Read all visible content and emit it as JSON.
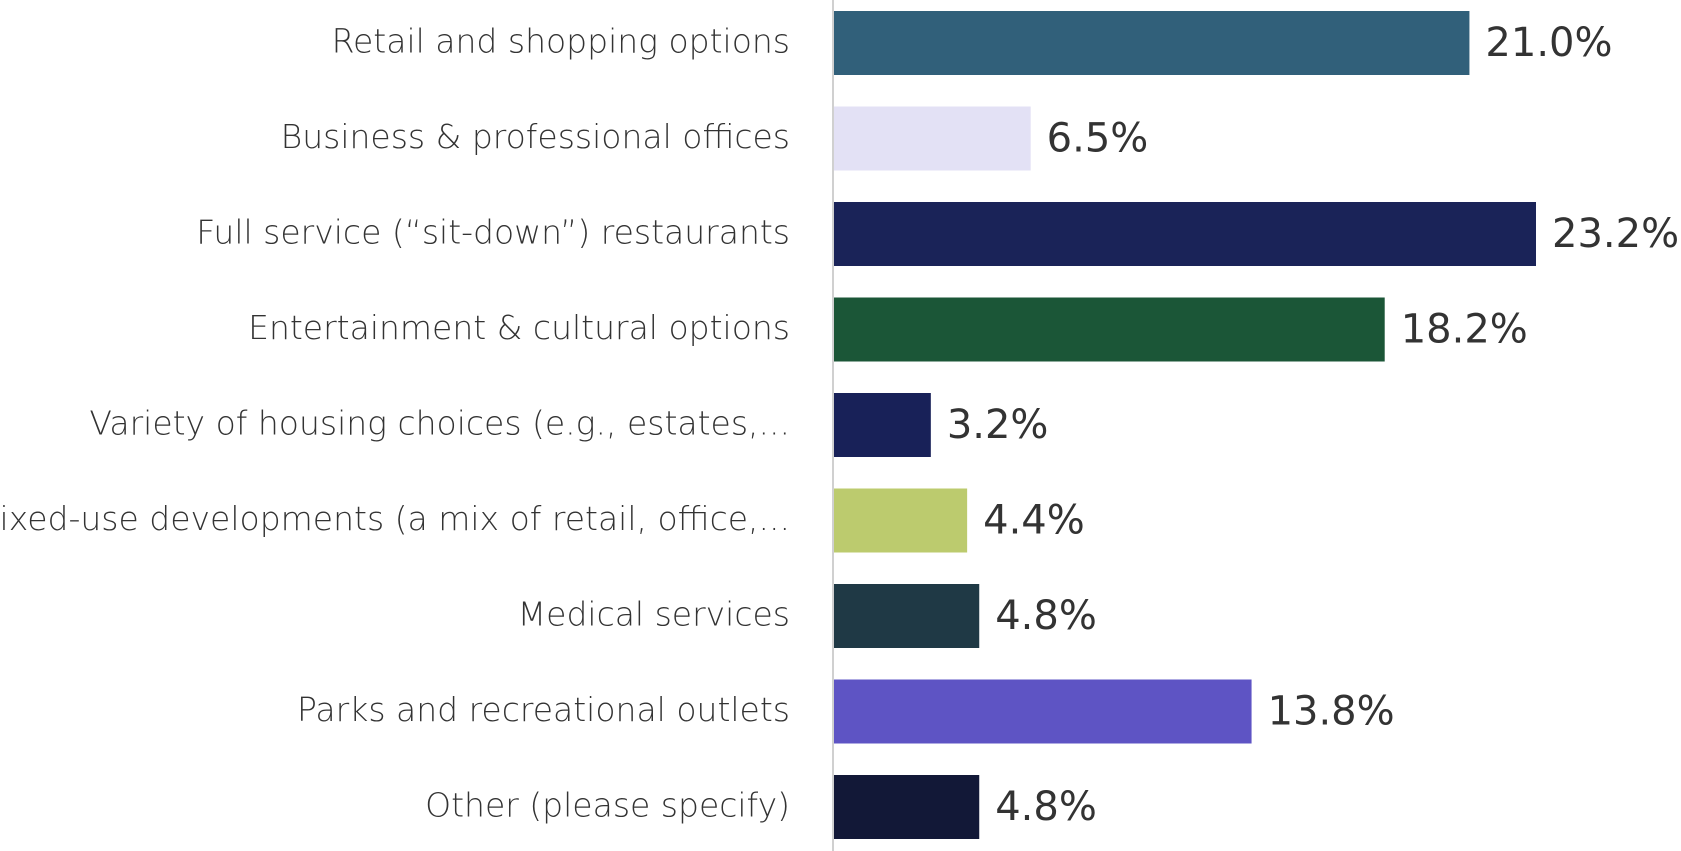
{
  "chart_data": {
    "type": "barh",
    "categories": [
      "Retail and shopping options",
      "Business & professional offices",
      "Full service (“sit-down”) restaurants",
      "Entertainment & cultural options",
      "Variety of housing choices (e.g., estates,...",
      "Mixed-use developments (a mix of retail, office,...",
      "Medical services",
      "Parks and recreational outlets",
      "Other (please specify)"
    ],
    "values": [
      21.0,
      6.5,
      23.2,
      18.2,
      3.2,
      4.4,
      4.8,
      13.8,
      4.8
    ],
    "value_labels": [
      "21.0%",
      "6.5%",
      "23.2%",
      "18.2%",
      "3.2%",
      "4.4%",
      "4.8%",
      "13.8%",
      "4.8%"
    ],
    "colors": [
      "#31607a",
      "#e3e1f5",
      "#1a2358",
      "#1b5637",
      "#182158",
      "#bccb6e",
      "#1f3945",
      "#5e54c4",
      "#121837"
    ]
  }
}
